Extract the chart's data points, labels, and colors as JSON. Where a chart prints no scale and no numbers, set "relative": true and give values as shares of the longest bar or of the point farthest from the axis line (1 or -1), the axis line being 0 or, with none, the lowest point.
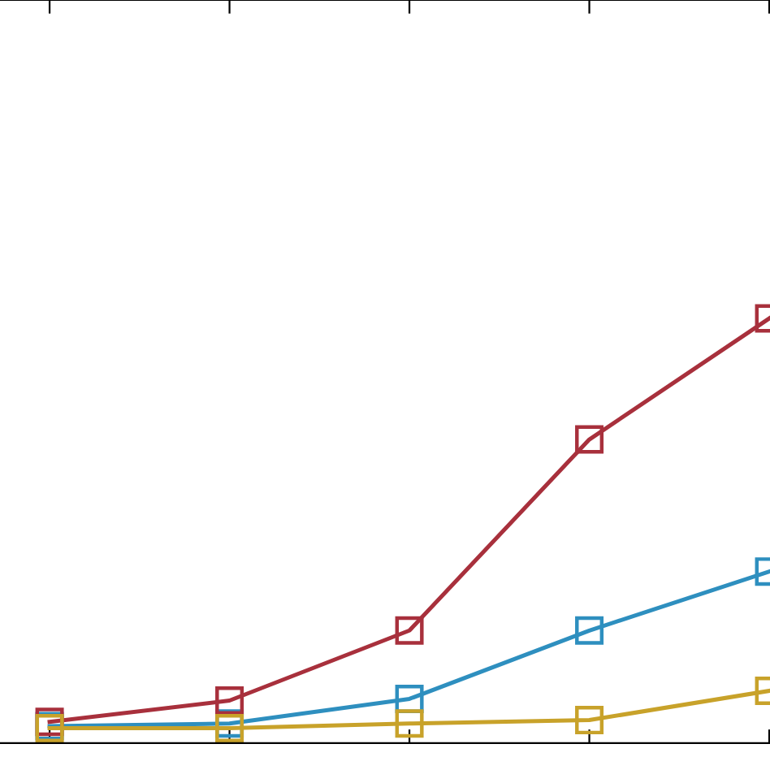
{
  "chart_data": {
    "type": "line",
    "relative": true,
    "marker": "square",
    "line_style": "solid",
    "grid": false,
    "categories": [
      null,
      null,
      null,
      null,
      null
    ],
    "series": [
      {
        "color": "#2e8fbf",
        "values": [
          0.04,
          0.046,
          0.104,
          0.265,
          0.404
        ]
      },
      {
        "color": "#a8303c",
        "values": [
          0.05,
          0.1,
          0.265,
          0.715,
          1
        ]
      },
      {
        "color": "#c8a22a",
        "values": [
          0.035,
          0.035,
          0.046,
          0.054,
          0.123
        ]
      }
    ]
  }
}
